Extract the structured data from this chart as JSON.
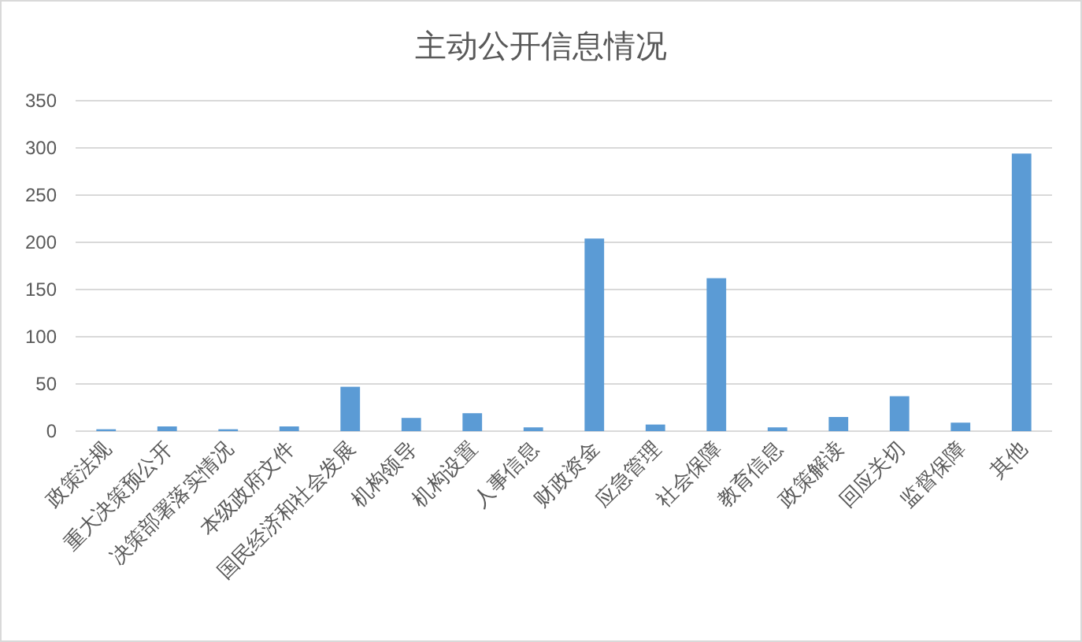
{
  "chart_data": {
    "type": "bar",
    "title": "主动公开信息情况",
    "categories": [
      "政策法规",
      "重大决策预公开",
      "决策部署落实情况",
      "本级政府文件",
      "国民经济和社会发展",
      "机构领导",
      "机构设置",
      "人事信息",
      "财政资金",
      "应急管理",
      "社会保障",
      "教育信息",
      "政策解读",
      "回应关切",
      "监督保障",
      "其他"
    ],
    "values": [
      2,
      5,
      2,
      5,
      47,
      14,
      19,
      4,
      204,
      7,
      162,
      4,
      15,
      37,
      9,
      294
    ],
    "color": "#5b9bd5",
    "ylim": [
      0,
      350
    ],
    "yticks": [
      0,
      50,
      100,
      150,
      200,
      250,
      300,
      350
    ],
    "grid": "y"
  }
}
